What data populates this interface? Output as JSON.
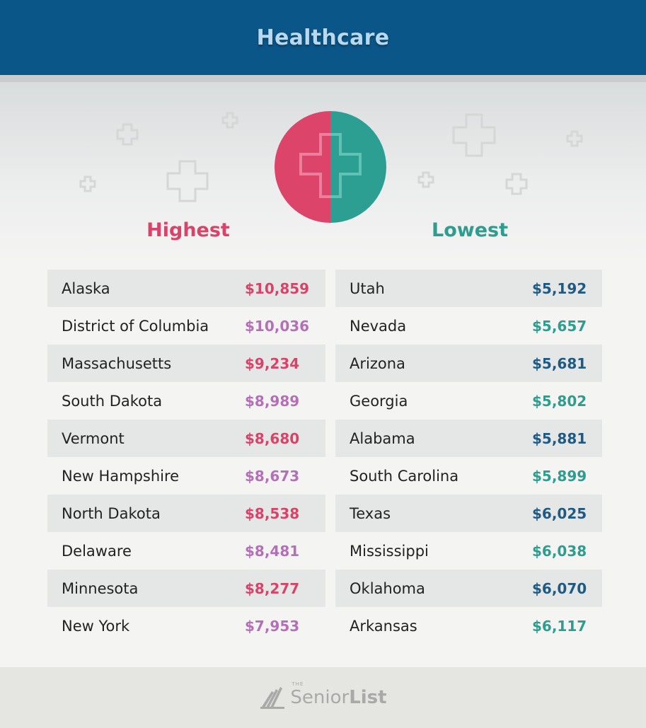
{
  "header": {
    "title": "Healthcare"
  },
  "columns": {
    "highest_label": "Highest",
    "lowest_label": "Lowest"
  },
  "colors": {
    "header_bg": "#0b5688",
    "highest_accent": "#d8436a",
    "lowest_accent": "#2c9d8e",
    "highest_alt": "#b56fb8",
    "lowest_alt": "#1f5a85"
  },
  "chart_data": {
    "type": "table",
    "title": "Healthcare",
    "tables": [
      {
        "name": "Highest",
        "rows": [
          {
            "state": "Alaska",
            "value": "$10,859"
          },
          {
            "state": "District of Columbia",
            "value": "$10,036"
          },
          {
            "state": "Massachusetts",
            "value": "$9,234"
          },
          {
            "state": "South Dakota",
            "value": "$8,989"
          },
          {
            "state": "Vermont",
            "value": "$8,680"
          },
          {
            "state": "New Hampshire",
            "value": "$8,673"
          },
          {
            "state": "North Dakota",
            "value": "$8,538"
          },
          {
            "state": "Delaware",
            "value": "$8,481"
          },
          {
            "state": "Minnesota",
            "value": "$8,277"
          },
          {
            "state": "New York",
            "value": "$7,953"
          }
        ]
      },
      {
        "name": "Lowest",
        "rows": [
          {
            "state": "Utah",
            "value": "$5,192"
          },
          {
            "state": "Nevada",
            "value": "$5,657"
          },
          {
            "state": "Arizona",
            "value": "$5,681"
          },
          {
            "state": "Georgia",
            "value": "$5,802"
          },
          {
            "state": "Alabama",
            "value": "$5,881"
          },
          {
            "state": "South Carolina",
            "value": "$5,899"
          },
          {
            "state": "Texas",
            "value": "$6,025"
          },
          {
            "state": "Mississippi",
            "value": "$6,038"
          },
          {
            "state": "Oklahoma",
            "value": "$6,070"
          },
          {
            "state": "Arkansas",
            "value": "$6,117"
          }
        ]
      }
    ]
  },
  "footer": {
    "logo_the": "THE",
    "logo_senior": "Senior",
    "logo_list": "List"
  },
  "icons": {
    "badge": "medical-cross-icon",
    "decor": "plus-outline-icon",
    "logo": "book-icon"
  }
}
